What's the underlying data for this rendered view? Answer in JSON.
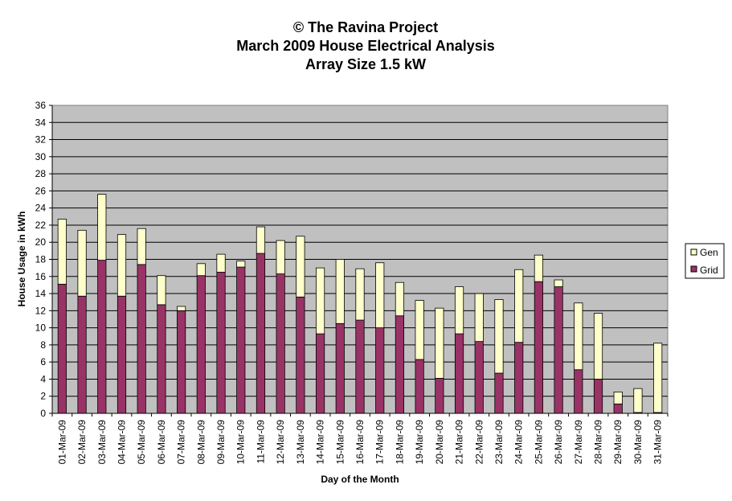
{
  "chart_data": {
    "type": "bar",
    "stacked": true,
    "title_lines": [
      "© The Ravina Project",
      "March 2009 House Electrical Analysis",
      "Array Size 1.5 kW"
    ],
    "xlabel": "Day of the Month",
    "ylabel": "House Usage in kWh",
    "ylim": [
      0,
      36
    ],
    "ytick_step": 2,
    "grid": true,
    "legend_position": "right",
    "categories": [
      "01-Mar-09",
      "02-Mar-09",
      "03-Mar-09",
      "04-Mar-09",
      "05-Mar-09",
      "06-Mar-09",
      "07-Mar-09",
      "08-Mar-09",
      "09-Mar-09",
      "10-Mar-09",
      "11-Mar-09",
      "12-Mar-09",
      "13-Mar-09",
      "14-Mar-09",
      "15-Mar-09",
      "16-Mar-09",
      "17-Mar-09",
      "18-Mar-09",
      "19-Mar-09",
      "20-Mar-09",
      "21-Mar-09",
      "22-Mar-09",
      "23-Mar-09",
      "24-Mar-09",
      "25-Mar-09",
      "26-Mar-09",
      "27-Mar-09",
      "28-Mar-09",
      "29-Mar-09",
      "30-Mar-09",
      "31-Mar-09"
    ],
    "series": [
      {
        "name": "Grid",
        "color": "#993366",
        "values": [
          15.1,
          13.7,
          17.9,
          13.7,
          17.4,
          12.7,
          12.0,
          16.1,
          16.5,
          17.1,
          18.7,
          16.3,
          13.6,
          9.3,
          10.5,
          10.9,
          10.0,
          11.4,
          6.3,
          4.1,
          9.3,
          8.4,
          4.7,
          8.3,
          15.4,
          14.8,
          5.1,
          4.0,
          1.1,
          0.1,
          0.1
        ]
      },
      {
        "name": "Gen",
        "color": "#FFFFCC",
        "values": [
          7.6,
          7.7,
          7.7,
          7.2,
          4.2,
          3.4,
          0.5,
          1.4,
          2.1,
          0.7,
          3.1,
          3.9,
          7.1,
          7.7,
          7.5,
          6.0,
          7.6,
          3.9,
          6.9,
          8.2,
          5.5,
          5.6,
          8.6,
          8.5,
          3.1,
          0.8,
          7.8,
          7.7,
          1.4,
          2.8,
          8.1
        ]
      }
    ]
  }
}
